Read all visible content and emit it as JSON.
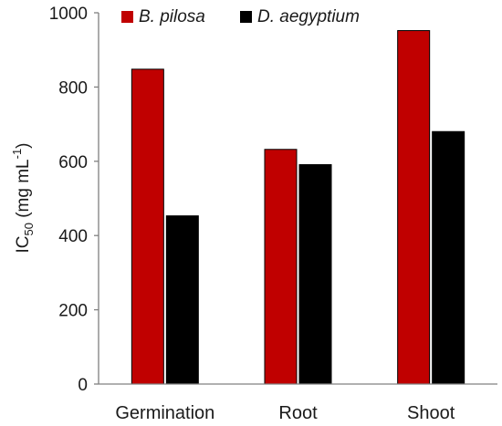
{
  "chart_data": {
    "type": "bar",
    "categories": [
      "Germination",
      "Root",
      "Shoot"
    ],
    "series": [
      {
        "name": "B. pilosa",
        "color": "#c00000",
        "values": [
          848,
          632,
          952
        ]
      },
      {
        "name": "D. aegyptium",
        "color": "#000000",
        "values": [
          453,
          591,
          680
        ]
      }
    ],
    "ylabel": {
      "prefix": "IC",
      "subscript": "50",
      "unit_open": " (mg mL",
      "superscript": "-1",
      "unit_close": ")"
    },
    "ylim": [
      0,
      1000
    ],
    "yticks": [
      0,
      200,
      400,
      600,
      800,
      1000
    ],
    "grid": false,
    "legend_position": "top"
  }
}
